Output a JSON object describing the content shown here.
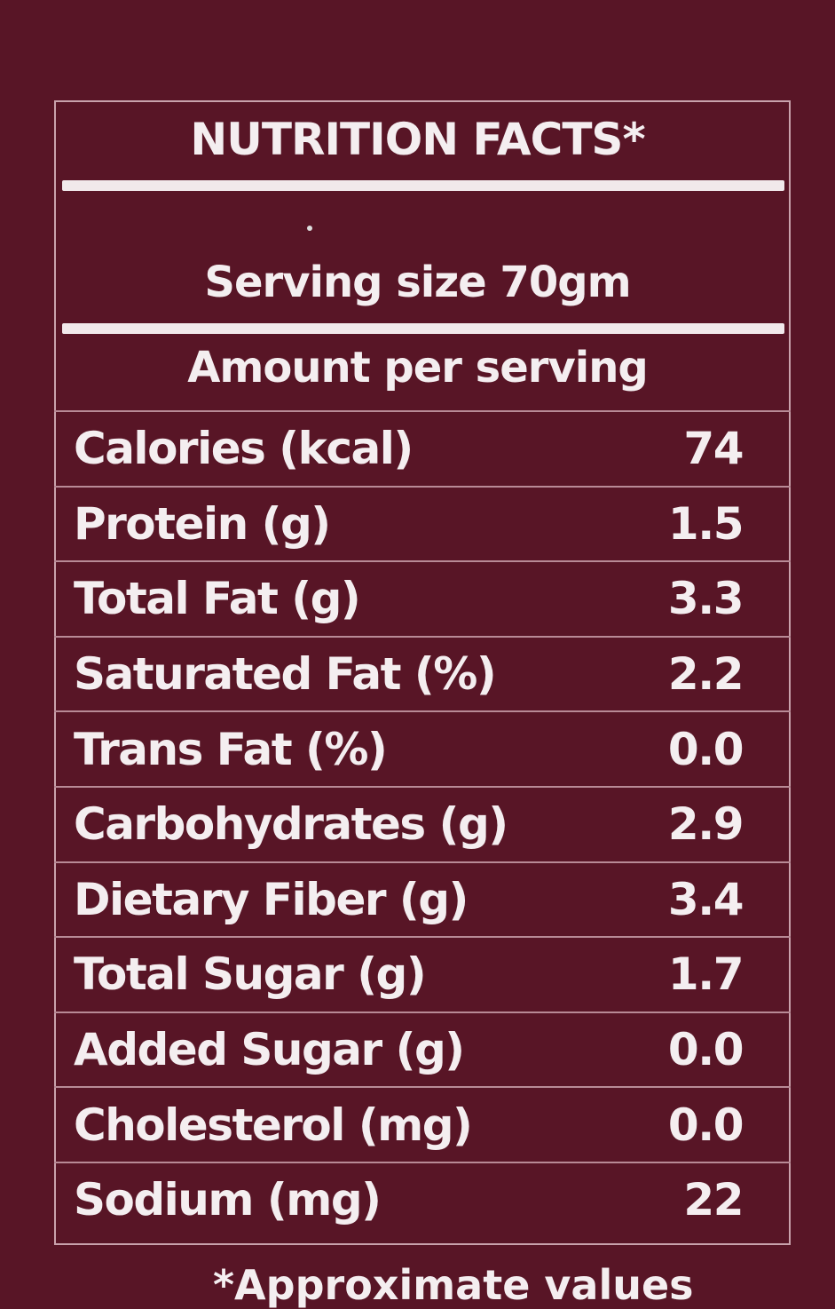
{
  "label": {
    "title": "NUTRITION FACTS*",
    "serving_size": "Serving size 70gm",
    "amount_header": "Amount per serving",
    "rows": [
      {
        "name": "Calories (kcal)",
        "value": "74"
      },
      {
        "name": "Protein (g)",
        "value": "1.5"
      },
      {
        "name": "Total Fat (g)",
        "value": "3.3"
      },
      {
        "name": "Saturated Fat (%)",
        "value": "2.2"
      },
      {
        "name": "Trans Fat (%)",
        "value": "0.0"
      },
      {
        "name": "Carbohydrates (g)",
        "value": "2.9"
      },
      {
        "name": "Dietary Fiber (g)",
        "value": "3.4"
      },
      {
        "name": "Total Sugar (g)",
        "value": "1.7"
      },
      {
        "name": "Added Sugar (g)",
        "value": "0.0"
      },
      {
        "name": "Cholesterol (mg)",
        "value": "0.0"
      },
      {
        "name": "Sodium (mg)",
        "value": "22"
      }
    ],
    "footnote": "*Approximate values"
  },
  "colors": {
    "background": "#581526",
    "text": "#f4eef0"
  }
}
